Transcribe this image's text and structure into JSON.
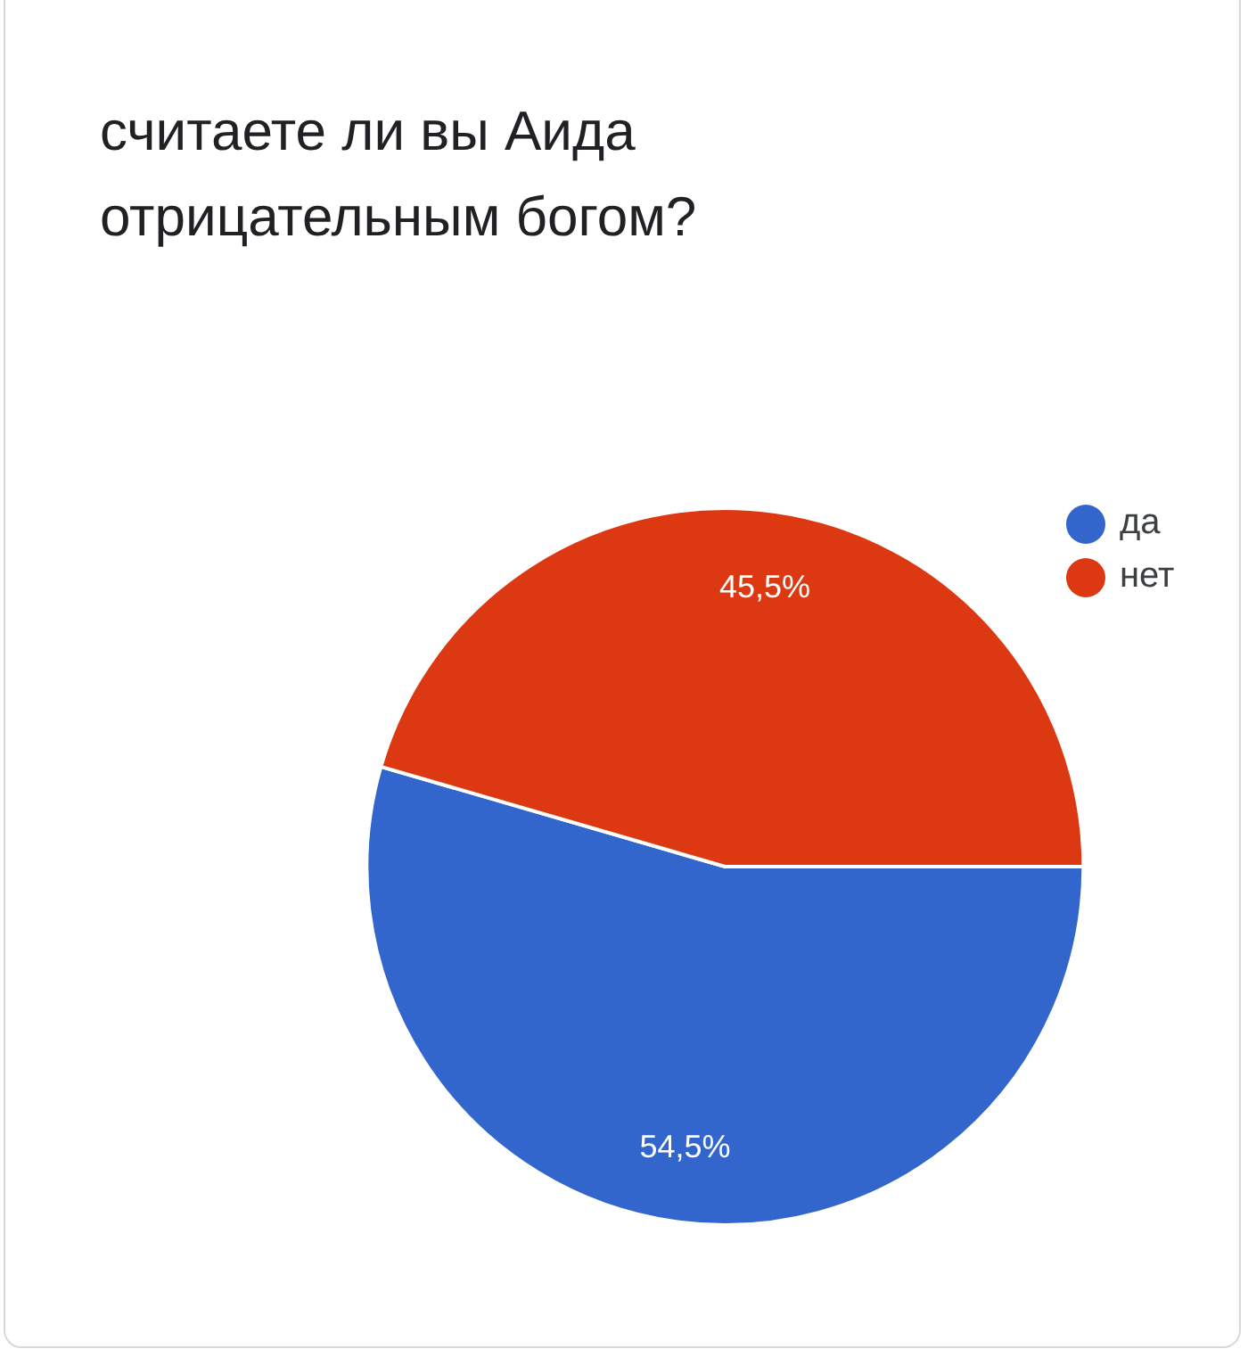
{
  "chart_data": {
    "type": "pie",
    "title": "считаете ли вы Аида отрицательным богом?",
    "categories": [
      "да",
      "нет"
    ],
    "values": [
      54.5,
      45.5
    ],
    "value_labels": [
      "54,5%",
      "45,5%"
    ],
    "colors": [
      "#3366cc",
      "#dc3912"
    ],
    "legend": "right"
  }
}
